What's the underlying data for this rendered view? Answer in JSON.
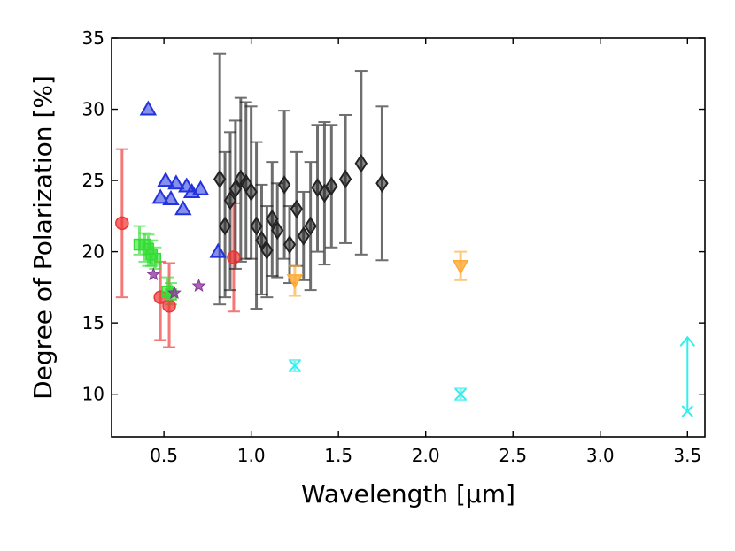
{
  "chart_data": {
    "type": "scatter",
    "title": "",
    "xlabel": "Wavelength [μm]",
    "ylabel": "Degree of Polarization [%]",
    "xlim": [
      0.2,
      3.6
    ],
    "ylim": [
      7,
      35
    ],
    "xticks": [
      0.5,
      1.0,
      1.5,
      2.0,
      2.5,
      3.0,
      3.5
    ],
    "xtick_labels": [
      "0.5",
      "1.0",
      "1.5",
      "2.0",
      "2.5",
      "3.0",
      "3.5"
    ],
    "yticks": [
      10,
      15,
      20,
      25,
      30,
      35
    ],
    "ytick_labels": [
      "10",
      "15",
      "20",
      "25",
      "30",
      "35"
    ],
    "colors": {
      "red": "#ee3333",
      "green": "#33dd33",
      "blue": "#2233dd",
      "purple": "#883399",
      "black": "#222222",
      "orange": "#ffaa33",
      "cyan": "#33eeee"
    },
    "series": [
      {
        "name": "red circles",
        "marker": "circle",
        "color_key": "red",
        "points": [
          {
            "x": 0.26,
            "y": 22.0,
            "lo": 16.8,
            "hi": 27.2
          },
          {
            "x": 0.48,
            "y": 16.8,
            "lo": 13.8,
            "hi": 19.3
          },
          {
            "x": 0.53,
            "y": 16.2,
            "lo": 13.3,
            "hi": 19.2
          },
          {
            "x": 0.9,
            "y": 19.6,
            "lo": 15.8,
            "hi": 23.4
          }
        ]
      },
      {
        "name": "green squares",
        "marker": "square",
        "color_key": "green",
        "points": [
          {
            "x": 0.36,
            "y": 20.5,
            "lo": 19.8,
            "hi": 21.8
          },
          {
            "x": 0.39,
            "y": 20.5,
            "lo": 19.3,
            "hi": 21.3
          },
          {
            "x": 0.41,
            "y": 20.2,
            "lo": 19.0,
            "hi": 21.2
          },
          {
            "x": 0.43,
            "y": 19.8,
            "lo": 19.0,
            "hi": 20.8
          },
          {
            "x": 0.45,
            "y": 19.5,
            "lo": 18.8,
            "hi": 20.3
          },
          {
            "x": 0.52,
            "y": 17.2,
            "lo": 16.5,
            "hi": 18.2
          },
          {
            "x": 0.54,
            "y": 17.0,
            "lo": 16.3,
            "hi": 17.8
          }
        ]
      },
      {
        "name": "blue triangles",
        "marker": "triangle-up",
        "color_key": "blue",
        "points": [
          {
            "x": 0.41,
            "y": 30.0
          },
          {
            "x": 0.48,
            "y": 23.8
          },
          {
            "x": 0.51,
            "y": 25.0
          },
          {
            "x": 0.54,
            "y": 23.7
          },
          {
            "x": 0.57,
            "y": 24.8
          },
          {
            "x": 0.61,
            "y": 23.0
          },
          {
            "x": 0.63,
            "y": 24.6
          },
          {
            "x": 0.66,
            "y": 24.2
          },
          {
            "x": 0.71,
            "y": 24.4
          },
          {
            "x": 0.81,
            "y": 20.0
          }
        ]
      },
      {
        "name": "purple stars",
        "marker": "star",
        "color_key": "purple",
        "points": [
          {
            "x": 0.44,
            "y": 18.4
          },
          {
            "x": 0.56,
            "y": 17.1
          },
          {
            "x": 0.7,
            "y": 17.6
          }
        ]
      },
      {
        "name": "black diamonds",
        "marker": "diamond",
        "color_key": "black",
        "points": [
          {
            "x": 0.82,
            "y": 25.1,
            "lo": 16.3,
            "hi": 33.9
          },
          {
            "x": 0.85,
            "y": 21.8,
            "lo": 16.8,
            "hi": 27.0
          },
          {
            "x": 0.88,
            "y": 23.6,
            "lo": 17.3,
            "hi": 28.4
          },
          {
            "x": 0.91,
            "y": 24.4,
            "lo": 18.8,
            "hi": 29.2
          },
          {
            "x": 0.94,
            "y": 25.1,
            "lo": 19.3,
            "hi": 30.8
          },
          {
            "x": 0.97,
            "y": 24.8,
            "lo": 19.5,
            "hi": 30.5
          },
          {
            "x": 1.0,
            "y": 24.2,
            "lo": 19.5,
            "hi": 30.2
          },
          {
            "x": 1.03,
            "y": 21.8,
            "lo": 16.0,
            "hi": 27.7
          },
          {
            "x": 1.06,
            "y": 20.8,
            "lo": 17.0,
            "hi": 24.7
          },
          {
            "x": 1.09,
            "y": 20.1,
            "lo": 16.8,
            "hi": 23.2
          },
          {
            "x": 1.12,
            "y": 22.3,
            "lo": 18.3,
            "hi": 26.3
          },
          {
            "x": 1.15,
            "y": 21.5,
            "lo": 18.2,
            "hi": 24.8
          },
          {
            "x": 1.19,
            "y": 24.7,
            "lo": 19.5,
            "hi": 29.9
          },
          {
            "x": 1.22,
            "y": 20.5,
            "lo": 17.8,
            "hi": 23.2
          },
          {
            "x": 1.26,
            "y": 23.0,
            "lo": 19.0,
            "hi": 27.0
          },
          {
            "x": 1.3,
            "y": 21.1,
            "lo": 18.0,
            "hi": 24.2
          },
          {
            "x": 1.34,
            "y": 21.8,
            "lo": 17.3,
            "hi": 26.3
          },
          {
            "x": 1.38,
            "y": 24.5,
            "lo": 20.0,
            "hi": 28.9
          },
          {
            "x": 1.42,
            "y": 24.1,
            "lo": 19.1,
            "hi": 29.1
          },
          {
            "x": 1.46,
            "y": 24.6,
            "lo": 20.3,
            "hi": 28.9
          },
          {
            "x": 1.54,
            "y": 25.1,
            "lo": 20.6,
            "hi": 29.6
          },
          {
            "x": 1.63,
            "y": 26.2,
            "lo": 19.8,
            "hi": 32.7
          },
          {
            "x": 1.75,
            "y": 24.8,
            "lo": 19.4,
            "hi": 30.2
          }
        ]
      },
      {
        "name": "orange triangles",
        "marker": "triangle-down",
        "color_key": "orange",
        "points": [
          {
            "x": 1.25,
            "y": 18.0,
            "lo": 16.9,
            "hi": 19.0
          },
          {
            "x": 2.2,
            "y": 19.0,
            "lo": 18.0,
            "hi": 20.0
          }
        ]
      },
      {
        "name": "cyan crosses",
        "marker": "x",
        "color_key": "cyan",
        "points": [
          {
            "x": 1.25,
            "y": 12.0,
            "lo": 11.6,
            "hi": 12.4
          },
          {
            "x": 2.2,
            "y": 10.0,
            "lo": 9.6,
            "hi": 10.4
          },
          {
            "x": 3.5,
            "y": 8.8
          }
        ]
      }
    ],
    "annotations": [
      {
        "type": "arrow",
        "x": 3.5,
        "y_from": 8.8,
        "y_to": 14.0,
        "color_key": "cyan",
        "label": ""
      }
    ]
  }
}
